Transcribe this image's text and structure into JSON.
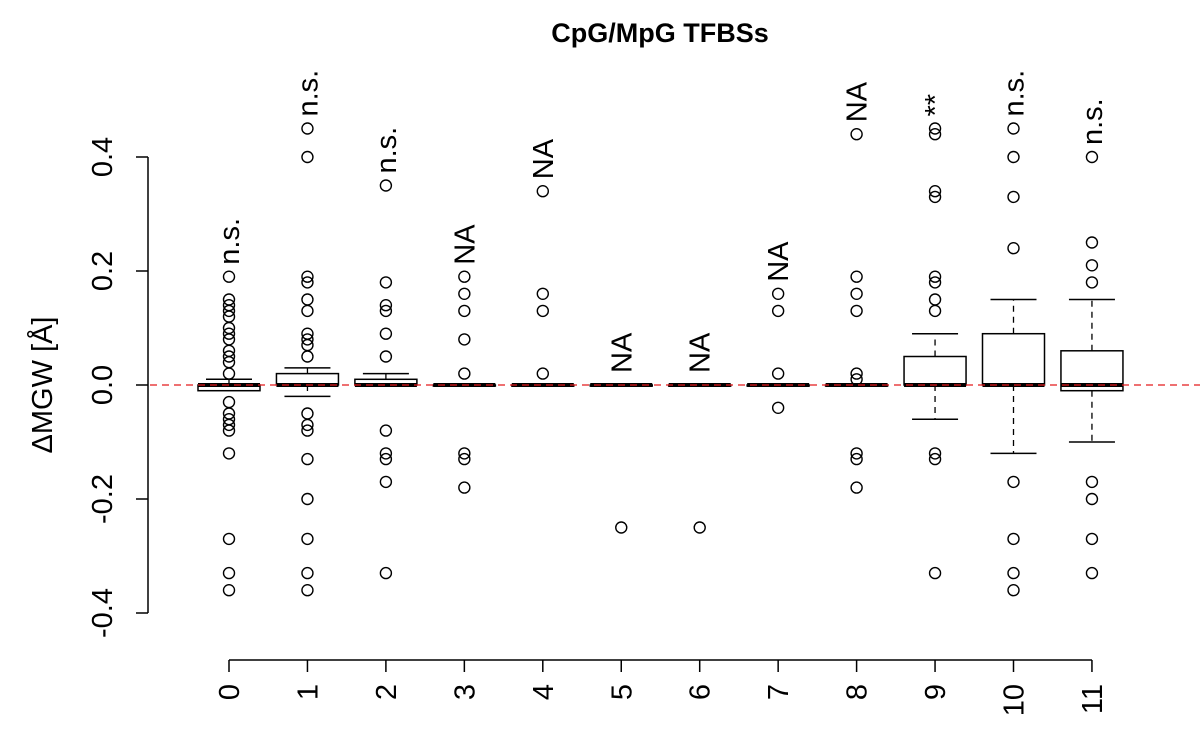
{
  "chart_data": {
    "type": "box",
    "title": "CpG/MpG TFBSs",
    "xlabel": "",
    "ylabel": "ΔMGW [Å]",
    "ylim": [
      -0.45,
      0.5
    ],
    "yticks": [
      "-0.4",
      "-0.2",
      "0.0",
      "0.2",
      "0.4"
    ],
    "ytick_values": [
      -0.4,
      -0.2,
      0.0,
      0.2,
      0.4
    ],
    "reference_line": {
      "y": 0.0,
      "color": "#e41a1c",
      "style": "dashed"
    },
    "grid": false,
    "legend": "none",
    "categories": [
      "0",
      "1",
      "2",
      "3",
      "4",
      "5",
      "6",
      "7",
      "8",
      "9",
      "10",
      "11"
    ],
    "groups": [
      {
        "label": "0",
        "annotation": "n.s.",
        "whisker_low": -0.01,
        "q1": -0.01,
        "median": 0.0,
        "q3": 0.0,
        "whisker_high": 0.01,
        "outliers": [
          0.19,
          0.15,
          0.14,
          0.13,
          0.12,
          0.1,
          0.09,
          0.08,
          0.06,
          0.05,
          0.04,
          0.02,
          -0.03,
          -0.05,
          -0.06,
          -0.07,
          -0.08,
          -0.12,
          -0.27,
          -0.33,
          -0.36
        ]
      },
      {
        "label": "1",
        "annotation": "n.s.",
        "whisker_low": -0.02,
        "q1": 0.0,
        "median": 0.0,
        "q3": 0.02,
        "whisker_high": 0.03,
        "outliers": [
          0.45,
          0.4,
          0.19,
          0.18,
          0.15,
          0.13,
          0.09,
          0.08,
          0.07,
          0.05,
          -0.05,
          -0.07,
          -0.08,
          -0.13,
          -0.2,
          -0.27,
          -0.33,
          -0.36
        ]
      },
      {
        "label": "2",
        "annotation": "n.s.",
        "whisker_low": 0.0,
        "q1": 0.0,
        "median": 0.0,
        "q3": 0.01,
        "whisker_high": 0.02,
        "outliers": [
          0.35,
          0.18,
          0.14,
          0.13,
          0.09,
          0.05,
          -0.08,
          -0.12,
          -0.13,
          -0.17,
          -0.33
        ]
      },
      {
        "label": "3",
        "annotation": "NA",
        "whisker_low": 0.0,
        "q1": 0.0,
        "median": 0.0,
        "q3": 0.0,
        "whisker_high": 0.0,
        "outliers": [
          0.19,
          0.16,
          0.13,
          0.08,
          0.02,
          -0.12,
          -0.13,
          -0.18
        ]
      },
      {
        "label": "4",
        "annotation": "NA",
        "whisker_low": 0.0,
        "q1": 0.0,
        "median": 0.0,
        "q3": 0.0,
        "whisker_high": 0.0,
        "outliers": [
          0.34,
          0.16,
          0.13,
          0.02
        ]
      },
      {
        "label": "5",
        "annotation": "NA",
        "whisker_low": 0.0,
        "q1": 0.0,
        "median": 0.0,
        "q3": 0.0,
        "whisker_high": 0.0,
        "outliers": [
          -0.25
        ]
      },
      {
        "label": "6",
        "annotation": "NA",
        "whisker_low": 0.0,
        "q1": 0.0,
        "median": 0.0,
        "q3": 0.0,
        "whisker_high": 0.0,
        "outliers": [
          -0.25
        ]
      },
      {
        "label": "7",
        "annotation": "NA",
        "whisker_low": 0.0,
        "q1": 0.0,
        "median": 0.0,
        "q3": 0.0,
        "whisker_high": 0.0,
        "outliers": [
          0.16,
          0.13,
          0.02,
          -0.04
        ]
      },
      {
        "label": "8",
        "annotation": "NA",
        "whisker_low": 0.0,
        "q1": 0.0,
        "median": 0.0,
        "q3": 0.0,
        "whisker_high": 0.0,
        "outliers": [
          0.44,
          0.19,
          0.16,
          0.13,
          0.02,
          0.01,
          -0.12,
          -0.13,
          -0.18
        ]
      },
      {
        "label": "9",
        "annotation": "**",
        "whisker_low": -0.06,
        "q1": 0.0,
        "median": 0.0,
        "q3": 0.05,
        "whisker_high": 0.09,
        "outliers": [
          0.45,
          0.44,
          0.34,
          0.33,
          0.19,
          0.18,
          0.15,
          0.13,
          -0.12,
          -0.13,
          -0.33
        ]
      },
      {
        "label": "10",
        "annotation": "n.s.",
        "whisker_low": -0.12,
        "q1": 0.0,
        "median": 0.0,
        "q3": 0.09,
        "whisker_high": 0.15,
        "outliers": [
          0.45,
          0.4,
          0.33,
          0.24,
          -0.17,
          -0.27,
          -0.33,
          -0.36
        ]
      },
      {
        "label": "11",
        "annotation": "n.s.",
        "whisker_low": -0.1,
        "q1": -0.01,
        "median": 0.0,
        "q3": 0.06,
        "whisker_high": 0.15,
        "outliers": [
          0.4,
          0.25,
          0.21,
          0.18,
          -0.17,
          -0.2,
          -0.27,
          -0.33
        ]
      }
    ]
  }
}
